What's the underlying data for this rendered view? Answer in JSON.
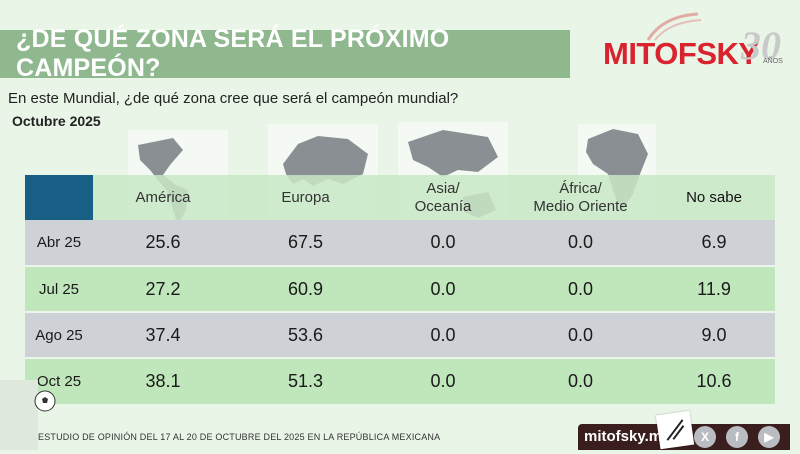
{
  "header": {
    "title": "¿DE QUÉ ZONA SERÁ EL PRÓXIMO CAMPEÓN?",
    "logo_text": "MITOFSKY",
    "logo_number": "30",
    "logo_suffix": "AÑOS"
  },
  "question": "En este Mundial, ¿de qué zona cree que será el campeón mundial?",
  "period": "Octubre 2025",
  "chart_data": {
    "type": "table",
    "columns": [
      "América",
      "Europa",
      "Asia/\nOceanía",
      "África/\nMedio Oriente",
      "No sabe"
    ],
    "rows": [
      {
        "label": "Abr 25",
        "values": [
          "25.6",
          "67.5",
          "0.0",
          "0.0",
          "6.9"
        ]
      },
      {
        "label": "Jul 25",
        "values": [
          "27.2",
          "60.9",
          "0.0",
          "0.0",
          "11.9"
        ]
      },
      {
        "label": "Ago 25",
        "values": [
          "37.4",
          "53.6",
          "0.0",
          "0.0",
          "9.0"
        ]
      },
      {
        "label": "Oct 25",
        "values": [
          "38.1",
          "51.3",
          "0.0",
          "0.0",
          "10.6"
        ]
      }
    ]
  },
  "footer": {
    "note": "ESTUDIO DE OPINIÓN DEL 17 AL 20 DE OCTUBRE DEL 2025 EN LA REPÚBLICA MEXICANA",
    "site": "mitofsky.m"
  },
  "colors": {
    "banner": "#8fb88f",
    "corner_cell": "#175f85",
    "row_gray": "#ced2d6",
    "row_green": "#bfe7bb",
    "brand_red": "#d9232e"
  },
  "icons": [
    "americas-map-icon",
    "europe-map-icon",
    "asia-oceania-map-icon",
    "africa-map-icon",
    "x-icon",
    "facebook-icon",
    "youtube-icon",
    "soccer-ball-icon"
  ]
}
